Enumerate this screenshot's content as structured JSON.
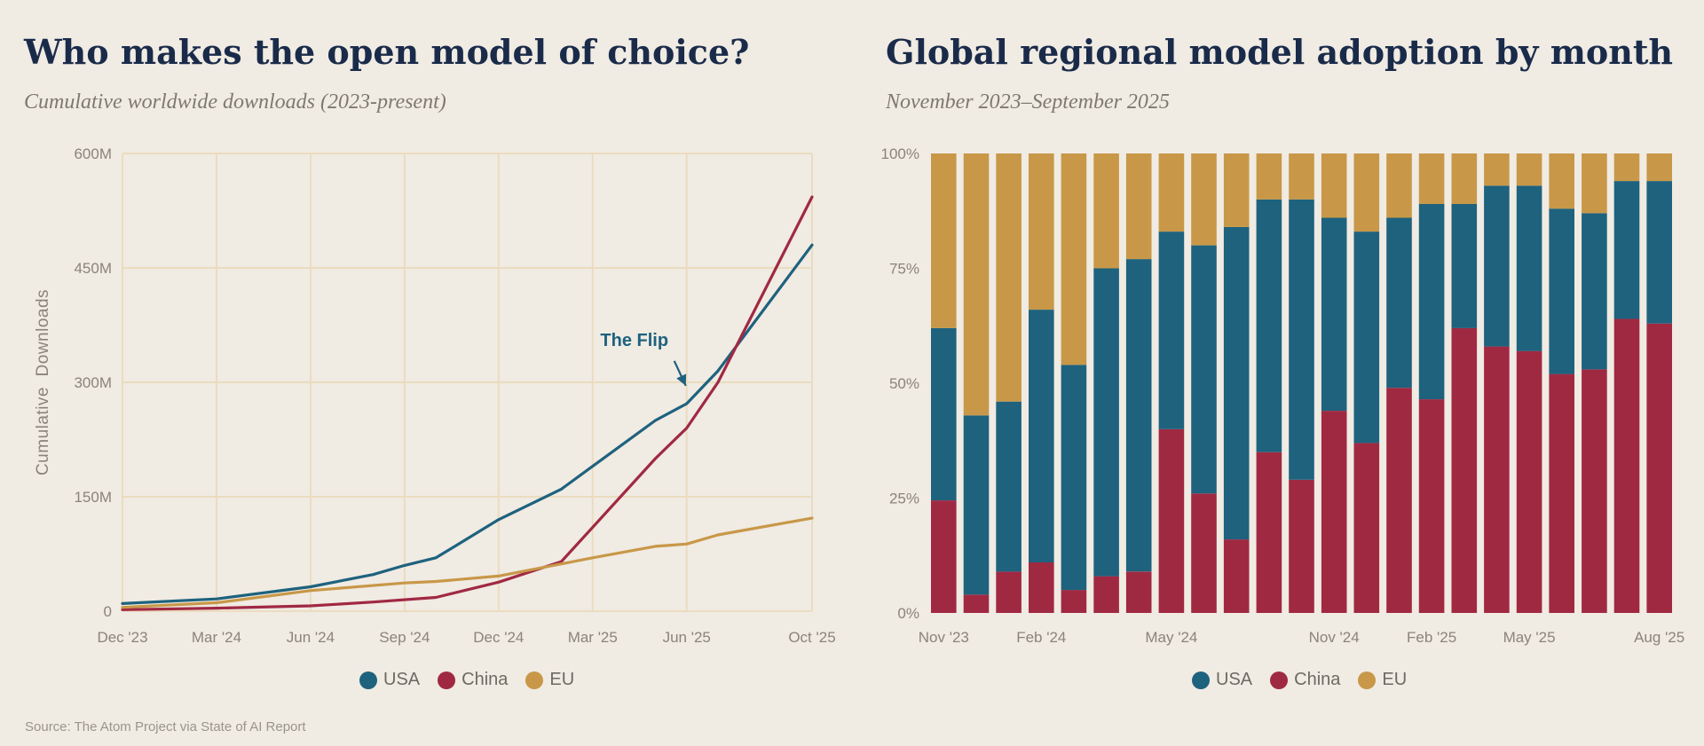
{
  "colors": {
    "usa": "#1e627e",
    "china": "#a02942",
    "eu": "#c89848",
    "grid": "#ebdcc0",
    "background": "#f0ebe3"
  },
  "left": {
    "title": "Who makes the open model of choice?",
    "subtitle": "Cumulative worldwide downloads (2023-present)",
    "annotation": "The Flip"
  },
  "right": {
    "title": "Global regional model adoption by month",
    "subtitle": "November 2023–September 2025"
  },
  "legend": {
    "usa": "USA",
    "china": "China",
    "eu": "EU"
  },
  "source": "Source: The Atom Project via State of AI Report",
  "chart_data": [
    {
      "type": "line",
      "title": "Who makes the open model of choice?",
      "subtitle": "Cumulative worldwide downloads (2023-present)",
      "xlabel": "",
      "ylabel": "Cumulative  Downloads",
      "x_range": [
        "2023-12",
        "2025-10"
      ],
      "ylim": [
        0,
        600
      ],
      "y_unit": "M",
      "y_ticks": [
        0,
        150,
        300,
        450,
        600
      ],
      "y_tick_labels": [
        "0",
        "150M",
        "300M",
        "450M",
        "600M"
      ],
      "x_ticks": [
        "2023-12",
        "2024-03",
        "2024-06",
        "2024-09",
        "2024-12",
        "2025-03",
        "2025-06",
        "2025-10"
      ],
      "x_tick_labels": [
        "Dec '23",
        "Mar '24",
        "Jun '24",
        "Sep '24",
        "Dec '24",
        "Mar '25",
        "Jun '25",
        "Oct '25"
      ],
      "grid": true,
      "legend_position": "bottom",
      "annotation": {
        "text": "The Flip",
        "points_to": "2025-06"
      },
      "series": [
        {
          "name": "USA",
          "color": "#1e627e",
          "points": [
            [
              "2023-12",
              10
            ],
            [
              "2024-03",
              16
            ],
            [
              "2024-06",
              32
            ],
            [
              "2024-08",
              48
            ],
            [
              "2024-09",
              60
            ],
            [
              "2024-10",
              70
            ],
            [
              "2024-12",
              120
            ],
            [
              "2025-02",
              160
            ],
            [
              "2025-03",
              190
            ],
            [
              "2025-05",
              250
            ],
            [
              "2025-06",
              272
            ],
            [
              "2025-07",
              315
            ],
            [
              "2025-10",
              480
            ]
          ]
        },
        {
          "name": "China",
          "color": "#a02942",
          "points": [
            [
              "2023-12",
              2
            ],
            [
              "2024-03",
              4
            ],
            [
              "2024-06",
              7
            ],
            [
              "2024-08",
              12
            ],
            [
              "2024-10",
              18
            ],
            [
              "2024-12",
              38
            ],
            [
              "2025-02",
              65
            ],
            [
              "2025-03",
              110
            ],
            [
              "2025-05",
              200
            ],
            [
              "2025-06",
              240
            ],
            [
              "2025-07",
              300
            ],
            [
              "2025-10",
              543
            ]
          ]
        },
        {
          "name": "EU",
          "color": "#c89848",
          "points": [
            [
              "2023-12",
              5
            ],
            [
              "2024-03",
              11
            ],
            [
              "2024-06",
              27
            ],
            [
              "2024-09",
              37
            ],
            [
              "2024-10",
              39
            ],
            [
              "2024-12",
              46
            ],
            [
              "2025-02",
              62
            ],
            [
              "2025-03",
              70
            ],
            [
              "2025-05",
              85
            ],
            [
              "2025-06",
              88
            ],
            [
              "2025-07",
              100
            ],
            [
              "2025-10",
              122
            ]
          ]
        }
      ]
    },
    {
      "type": "bar",
      "stacked": true,
      "title": "Global regional model adoption by month",
      "subtitle": "November 2023–September 2025",
      "xlabel": "",
      "ylabel": "",
      "ylim": [
        0,
        100
      ],
      "y_unit": "%",
      "y_ticks": [
        0,
        25,
        50,
        75,
        100
      ],
      "y_tick_labels": [
        "0%",
        "25%",
        "50%",
        "75%",
        "100%"
      ],
      "x_tick_labels": [
        "Nov '23",
        "Feb '24",
        "May '24",
        "Nov '24",
        "Feb '25",
        "May '25",
        "Aug '25"
      ],
      "x_tick_positions": [
        0,
        3,
        7,
        12,
        15,
        18,
        22
      ],
      "legend_position": "bottom",
      "categories": [
        "2023-11",
        "2023-12",
        "2024-01",
        "2024-02",
        "2024-03",
        "2024-04",
        "2024-05",
        "2024-06",
        "2024-07",
        "2024-08",
        "2024-09",
        "2024-10",
        "2024-11",
        "2024-12",
        "2025-01",
        "2025-02",
        "2025-03",
        "2025-04",
        "2025-05",
        "2025-06",
        "2025-07",
        "2025-08",
        "2025-09"
      ],
      "series": [
        {
          "name": "China",
          "color": "#a02942",
          "values": [
            24.5,
            4,
            9,
            11,
            5,
            8,
            9,
            40,
            26,
            16,
            35,
            29,
            44,
            37,
            49,
            46.5,
            62,
            58,
            57,
            52,
            53,
            64,
            63
          ]
        },
        {
          "name": "USA",
          "color": "#1e627e",
          "values": [
            37.5,
            39,
            37,
            55,
            49,
            67,
            68,
            43,
            54,
            68,
            55,
            61,
            42,
            46,
            37,
            42.5,
            27,
            35,
            36,
            36,
            34,
            30,
            31
          ]
        },
        {
          "name": "EU",
          "color": "#c89848",
          "values": [
            38,
            57,
            54,
            34,
            46,
            25,
            23,
            17,
            20,
            16,
            10,
            10,
            14,
            17,
            14,
            11,
            11,
            7,
            7,
            12,
            13,
            6,
            6
          ]
        }
      ]
    }
  ]
}
